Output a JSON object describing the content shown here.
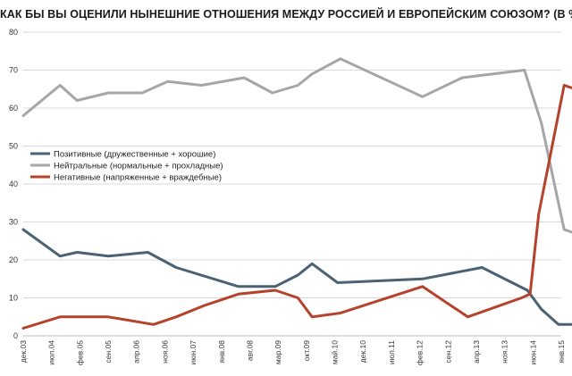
{
  "chart_data": {
    "type": "line",
    "title": "КАК БЫ ВЫ ОЦЕНИЛИ НЫНЕШНИЕ ОТНОШЕНИЯ МЕЖДУ РОССИЕЙ И ЕВРОПЕЙСКИМ СОЮЗОМ? (В %)",
    "xlabel": "",
    "ylabel": "",
    "ylim": [
      0,
      80
    ],
    "yticks": [
      0,
      10,
      20,
      30,
      40,
      50,
      60,
      70,
      80
    ],
    "grid": true,
    "legend_position": "middle-left",
    "x_tick_labels": [
      "дек.03",
      "июл.04",
      "фев.05",
      "сен.05",
      "апр.06",
      "ноя.06",
      "июн.07",
      "янв.08",
      "авг.08",
      "мар.09",
      "окт.09",
      "май.10",
      "дек.10",
      "июл.11",
      "фев.12",
      "сен.12",
      "апр.13",
      "ноя.13",
      "июн.14",
      "янв.15"
    ],
    "series": [
      {
        "name": "Позитивные (дружественные + хорошие)",
        "color": "#4a6273",
        "points": [
          {
            "x": 0,
            "y": 28
          },
          {
            "x": 1.3,
            "y": 21
          },
          {
            "x": 1.9,
            "y": 22
          },
          {
            "x": 3,
            "y": 21
          },
          {
            "x": 4.4,
            "y": 22
          },
          {
            "x": 5.4,
            "y": 18
          },
          {
            "x": 7.6,
            "y": 13
          },
          {
            "x": 8.9,
            "y": 13
          },
          {
            "x": 9.7,
            "y": 16
          },
          {
            "x": 10.2,
            "y": 19
          },
          {
            "x": 11.1,
            "y": 14
          },
          {
            "x": 14.1,
            "y": 15
          },
          {
            "x": 16.2,
            "y": 18
          },
          {
            "x": 17.8,
            "y": 12
          },
          {
            "x": 18.3,
            "y": 7
          },
          {
            "x": 18.9,
            "y": 3
          },
          {
            "x": 19.7,
            "y": 3
          }
        ]
      },
      {
        "name": "Нейтральные (нормальные + прохладные)",
        "color": "#a6a6a6",
        "points": [
          {
            "x": 0,
            "y": 58
          },
          {
            "x": 1.3,
            "y": 66
          },
          {
            "x": 1.9,
            "y": 62
          },
          {
            "x": 3,
            "y": 64
          },
          {
            "x": 4.2,
            "y": 64
          },
          {
            "x": 5.1,
            "y": 67
          },
          {
            "x": 6.3,
            "y": 66
          },
          {
            "x": 7.8,
            "y": 68
          },
          {
            "x": 8.8,
            "y": 64
          },
          {
            "x": 9.7,
            "y": 66
          },
          {
            "x": 10.2,
            "y": 69
          },
          {
            "x": 11.2,
            "y": 73
          },
          {
            "x": 14.1,
            "y": 63
          },
          {
            "x": 15.5,
            "y": 68
          },
          {
            "x": 17.7,
            "y": 70
          },
          {
            "x": 18.3,
            "y": 56
          },
          {
            "x": 19.1,
            "y": 28
          },
          {
            "x": 19.7,
            "y": 26.5
          }
        ]
      },
      {
        "name": "Негативные  (напряженные + враждебные)",
        "color": "#b5422a",
        "points": [
          {
            "x": 0,
            "y": 2
          },
          {
            "x": 1.3,
            "y": 5
          },
          {
            "x": 3,
            "y": 5
          },
          {
            "x": 4.6,
            "y": 3
          },
          {
            "x": 5.4,
            "y": 5
          },
          {
            "x": 6.4,
            "y": 8
          },
          {
            "x": 7.6,
            "y": 11
          },
          {
            "x": 8.9,
            "y": 12
          },
          {
            "x": 9.7,
            "y": 10
          },
          {
            "x": 10.2,
            "y": 5
          },
          {
            "x": 11.2,
            "y": 6
          },
          {
            "x": 14.1,
            "y": 13
          },
          {
            "x": 15.7,
            "y": 5
          },
          {
            "x": 17.6,
            "y": 10
          },
          {
            "x": 17.9,
            "y": 11
          },
          {
            "x": 18.2,
            "y": 32
          },
          {
            "x": 19.1,
            "y": 66
          },
          {
            "x": 19.7,
            "y": 64.5
          }
        ]
      }
    ]
  }
}
